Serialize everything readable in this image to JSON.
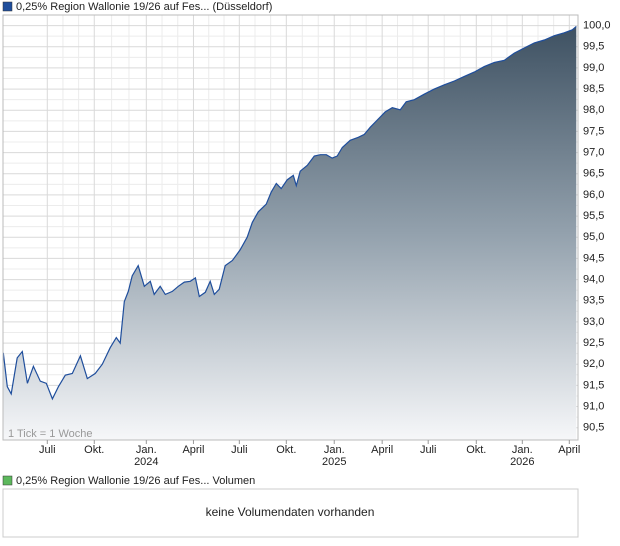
{
  "chart_data": {
    "type": "area",
    "note": "1 Tick = 1 Woche",
    "series": [
      {
        "name": "0,25% Region Wallonie 19/26 auf Fes... (Düsseldorf)",
        "color": "#1f4e9c",
        "x": [
          0.02,
          0.27,
          0.52,
          0.9,
          1.22,
          1.54,
          1.92,
          2.36,
          2.74,
          3.12,
          3.5,
          3.94,
          4.38,
          4.89,
          5.33,
          5.83,
          6.28,
          6.78,
          7.16,
          7.41,
          7.67,
          7.92,
          8.17,
          8.55,
          8.93,
          9.31,
          9.56,
          9.94,
          10.26,
          10.7,
          11.08,
          11.46,
          11.84,
          12.16,
          12.41,
          12.79,
          13.1,
          13.36,
          13.67,
          14.05,
          14.5,
          14.99,
          15.44,
          15.76,
          16.14,
          16.64,
          16.96,
          17.28,
          17.59,
          17.97,
          18.35,
          18.54,
          18.79,
          19.24,
          19.68,
          20.06,
          20.44,
          20.81,
          21.13,
          21.45,
          21.95,
          22.46,
          22.84,
          23.22,
          23.66,
          24.16,
          24.61,
          25.11,
          25.49,
          26.0,
          26.63,
          27.26,
          27.9,
          28.53,
          29.16,
          29.79,
          30.42,
          31.06,
          31.69,
          32.32,
          32.95,
          33.59,
          34.22,
          34.85,
          35.48,
          35.99,
          36.24
        ],
        "values": [
          92.27,
          91.47,
          91.3,
          92.15,
          92.3,
          91.55,
          91.95,
          91.6,
          91.55,
          91.18,
          91.47,
          91.74,
          91.78,
          92.2,
          91.66,
          91.78,
          92.0,
          92.39,
          92.63,
          92.5,
          93.48,
          93.72,
          94.09,
          94.33,
          93.84,
          93.96,
          93.65,
          93.84,
          93.65,
          93.72,
          93.84,
          93.94,
          93.96,
          94.04,
          93.6,
          93.7,
          93.96,
          93.65,
          93.77,
          94.33,
          94.45,
          94.7,
          95.0,
          95.35,
          95.6,
          95.78,
          96.07,
          96.27,
          96.15,
          96.36,
          96.46,
          96.22,
          96.56,
          96.7,
          96.92,
          96.95,
          96.95,
          96.87,
          96.92,
          97.12,
          97.29,
          97.36,
          97.43,
          97.6,
          97.77,
          97.96,
          98.06,
          98.01,
          98.2,
          98.25,
          98.38,
          98.5,
          98.6,
          98.69,
          98.8,
          98.9,
          99.03,
          99.13,
          99.18,
          99.35,
          99.47,
          99.59,
          99.66,
          99.76,
          99.83,
          99.9,
          99.98
        ]
      }
    ],
    "xlim": [
      0,
      36.35
    ],
    "xticks": [
      {
        "value": 2.8,
        "label": "Juli"
      },
      {
        "value": 5.77,
        "label": "Okt."
      },
      {
        "value": 9.06,
        "label": "Jan.",
        "year": "2024"
      },
      {
        "value": 12.04,
        "label": "April"
      },
      {
        "value": 14.94,
        "label": "Juli"
      },
      {
        "value": 17.91,
        "label": "Okt."
      },
      {
        "value": 20.94,
        "label": "Jan.",
        "year": "2025"
      },
      {
        "value": 23.97,
        "label": "April"
      },
      {
        "value": 26.88,
        "label": "Juli"
      },
      {
        "value": 29.92,
        "label": "Okt."
      },
      {
        "value": 32.83,
        "label": "Jan.",
        "year": "2026"
      },
      {
        "value": 35.8,
        "label": "April"
      }
    ],
    "ylim": [
      90.21,
      100.25
    ],
    "yticks": [
      {
        "value": 90.5,
        "label": "90,5"
      },
      {
        "value": 91.0,
        "label": "91,0"
      },
      {
        "value": 91.5,
        "label": "91,5"
      },
      {
        "value": 92.0,
        "label": "92,0"
      },
      {
        "value": 92.5,
        "label": "92,5"
      },
      {
        "value": 93.0,
        "label": "93,0"
      },
      {
        "value": 93.5,
        "label": "93,5"
      },
      {
        "value": 94.0,
        "label": "94,0"
      },
      {
        "value": 94.5,
        "label": "94,5"
      },
      {
        "value": 95.0,
        "label": "95,0"
      },
      {
        "value": 95.5,
        "label": "95,5"
      },
      {
        "value": 96.0,
        "label": "96,0"
      },
      {
        "value": 96.5,
        "label": "96,5"
      },
      {
        "value": 97.0,
        "label": "97,0"
      },
      {
        "value": 97.5,
        "label": "97,5"
      },
      {
        "value": 98.0,
        "label": "98,0"
      },
      {
        "value": 98.5,
        "label": "98,5"
      },
      {
        "value": 99.0,
        "label": "99,0"
      },
      {
        "value": 99.5,
        "label": "99,5"
      },
      {
        "value": 100.0,
        "label": "100,0"
      }
    ],
    "grid": true
  },
  "volume": {
    "legend": "0,25% Region Wallonie 19/26 auf Fes... Volumen",
    "color": "#5cb85c",
    "message": "keine Volumendaten vorhanden"
  }
}
